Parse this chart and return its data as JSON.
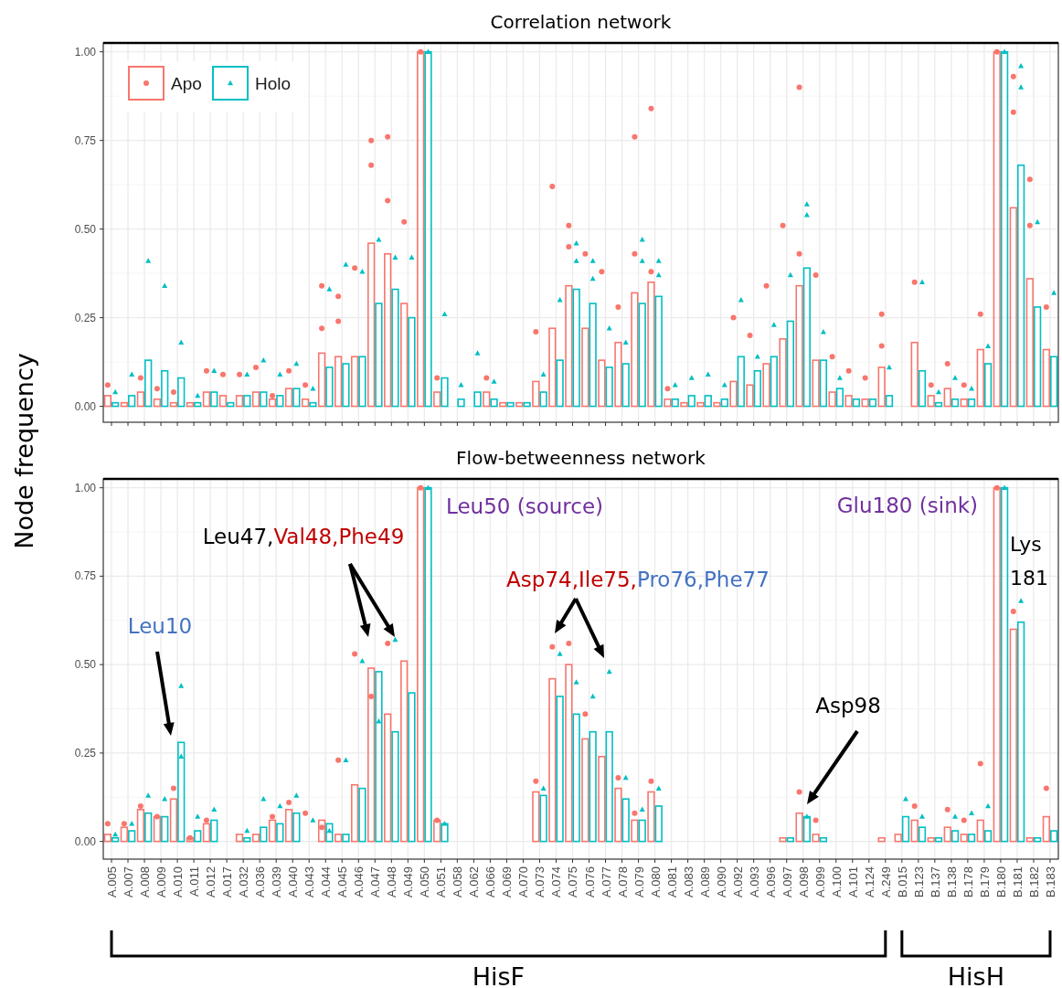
{
  "chart_data": [
    {
      "type": "bar",
      "title": "Correlation network",
      "ylabel": "Node frequency",
      "legend": "top left",
      "grid": true,
      "tick_labels": "y",
      "categories": [
        "A.005",
        "A.007",
        "A.008",
        "A.009",
        "A.010",
        "A.011",
        "A.012",
        "A.017",
        "A.032",
        "A.036",
        "A.039",
        "A.040",
        "A.043",
        "A.044",
        "A.045",
        "A.046",
        "A.047",
        "A.048",
        "A.049",
        "A.050",
        "A.051",
        "A.058",
        "A.062",
        "A.066",
        "A.069",
        "A.070",
        "A.073",
        "A.074",
        "A.075",
        "A.076",
        "A.077",
        "A.078",
        "A.079",
        "A.080",
        "A.081",
        "A.083",
        "A.089",
        "A.090",
        "A.092",
        "A.093",
        "A.096",
        "A.097",
        "A.098",
        "A.099",
        "A.100",
        "A.101",
        "A.124",
        "A.249",
        "B.015",
        "B.123",
        "B.137",
        "B.138",
        "B.178",
        "B.179",
        "B.180",
        "B.181",
        "B.182",
        "B.183"
      ],
      "ylim": [
        -0.045,
        1.025
      ],
      "yticks": [
        {
          "value": 0,
          "label": "0.00"
        },
        {
          "value": 0.25,
          "label": "0.25"
        },
        {
          "value": 0.5,
          "label": "0.50"
        },
        {
          "value": 0.75,
          "label": "0.75"
        },
        {
          "value": 1,
          "label": "1.00"
        }
      ],
      "series": [
        {
          "name": "Apo",
          "color": "#f8766d",
          "values": [
            0.03,
            0.01,
            0.04,
            0.02,
            0.01,
            0.01,
            0.04,
            0.03,
            0.03,
            0.04,
            0.02,
            0.05,
            0.02,
            0.15,
            0.14,
            0.14,
            0.46,
            0.43,
            0.29,
            1,
            0.04,
            0,
            0,
            0.04,
            0.01,
            0.01,
            0.07,
            0.22,
            0.34,
            0.22,
            0.13,
            0.18,
            0.32,
            0.35,
            0.02,
            0.01,
            0.01,
            0.01,
            0.07,
            0.06,
            0.12,
            0.19,
            0.34,
            0.13,
            0.04,
            0.03,
            0.02,
            0.11,
            0,
            0.18,
            0.03,
            0.05,
            0.02,
            0.16,
            1,
            0.56,
            0.36,
            0.16
          ]
        },
        {
          "name": "Holo",
          "color": "#00bfc4",
          "values": [
            0.01,
            0.03,
            0.13,
            0.1,
            0.08,
            0.01,
            0.04,
            0.01,
            0.03,
            0.04,
            0.03,
            0.05,
            0.01,
            0.11,
            0.12,
            0.14,
            0.29,
            0.33,
            0.25,
            1,
            0.08,
            0.02,
            0.04,
            0.02,
            0.01,
            0.01,
            0.04,
            0.13,
            0.33,
            0.29,
            0.11,
            0.12,
            0.29,
            0.31,
            0.02,
            0.03,
            0.03,
            0.02,
            0.14,
            0.1,
            0.14,
            0.24,
            0.39,
            0.13,
            0.05,
            0.02,
            0.02,
            0.03,
            0,
            0.1,
            0.01,
            0.02,
            0.02,
            0.12,
            1,
            0.68,
            0.28,
            0.14
          ]
        },
        {
          "type": "scatter",
          "color": "#f8766d",
          "marker": "circle",
          "x": [
            "A.005",
            "A.008",
            "A.009",
            "A.010",
            "A.012",
            "A.017",
            "A.032",
            "A.036",
            "A.039",
            "A.040",
            "A.043",
            "A.044",
            "A.044",
            "A.045",
            "A.045",
            "A.046",
            "A.047",
            "A.047",
            "A.048",
            "A.048",
            "A.049",
            "A.050",
            "A.051",
            "A.066",
            "A.073",
            "A.074",
            "A.075",
            "A.075",
            "A.076",
            "A.077",
            "A.078",
            "A.079",
            "A.079",
            "A.080",
            "A.080",
            "A.081",
            "A.092",
            "A.093",
            "A.096",
            "A.097",
            "A.098",
            "A.098",
            "A.099",
            "A.100",
            "A.101",
            "A.124",
            "A.249",
            "A.249",
            "B.123",
            "B.137",
            "B.138",
            "B.178",
            "B.179",
            "B.180",
            "B.181",
            "B.181",
            "B.182",
            "B.182",
            "B.183"
          ],
          "values": [
            0.06,
            0.08,
            0.05,
            0.04,
            0.1,
            0.09,
            0.09,
            0.11,
            0.03,
            0.1,
            0.06,
            0.34,
            0.22,
            0.31,
            0.24,
            0.39,
            0.75,
            0.68,
            0.76,
            0.58,
            0.52,
            1,
            0.08,
            0.08,
            0.21,
            0.62,
            0.51,
            0.45,
            0.43,
            0.38,
            0.28,
            0.76,
            0.43,
            0.84,
            0.38,
            0.05,
            0.25,
            0.2,
            0.34,
            0.51,
            0.9,
            0.43,
            0.37,
            0.14,
            0.1,
            0.08,
            0.26,
            0.17,
            0.35,
            0.06,
            0.12,
            0.06,
            0.26,
            1,
            0.93,
            0.83,
            0.64,
            0.51,
            0.28
          ]
        },
        {
          "type": "scatter",
          "color": "#00bfc4",
          "marker": "triangle",
          "x": [
            "A.005",
            "A.007",
            "A.008",
            "A.009",
            "A.010",
            "A.011",
            "A.012",
            "A.032",
            "A.036",
            "A.039",
            "A.040",
            "A.043",
            "A.044",
            "A.045",
            "A.046",
            "A.047",
            "A.048",
            "A.049",
            "A.050",
            "A.051",
            "A.058",
            "A.062",
            "A.066",
            "A.073",
            "A.074",
            "A.075",
            "A.075",
            "A.076",
            "A.076",
            "A.077",
            "A.078",
            "A.079",
            "A.079",
            "A.080",
            "A.080",
            "A.081",
            "A.083",
            "A.089",
            "A.090",
            "A.092",
            "A.093",
            "A.096",
            "A.097",
            "A.098",
            "A.098",
            "A.099",
            "A.100",
            "A.249",
            "B.123",
            "B.137",
            "B.138",
            "B.178",
            "B.179",
            "B.180",
            "B.181",
            "B.181",
            "B.182",
            "B.183"
          ],
          "values": [
            0.04,
            0.09,
            0.41,
            0.34,
            0.18,
            0.03,
            0.1,
            0.09,
            0.13,
            0.09,
            0.12,
            0.05,
            0.33,
            0.4,
            0.38,
            0.47,
            0.42,
            0.42,
            1,
            0.26,
            0.06,
            0.15,
            0.07,
            0.09,
            0.3,
            0.46,
            0.41,
            0.41,
            0.36,
            0.22,
            0.18,
            0.47,
            0.41,
            0.41,
            0.37,
            0.06,
            0.08,
            0.09,
            0.06,
            0.3,
            0.14,
            0.23,
            0.37,
            0.57,
            0.54,
            0.21,
            0.08,
            0.11,
            0.35,
            0.04,
            0.08,
            0.05,
            0.17,
            1,
            0.96,
            0.9,
            0.52,
            0.32
          ]
        }
      ]
    },
    {
      "type": "bar",
      "title": "Flow-betweenness network",
      "grid": true,
      "categories": [
        "A.005",
        "A.007",
        "A.008",
        "A.009",
        "A.010",
        "A.011",
        "A.012",
        "A.017",
        "A.032",
        "A.036",
        "A.039",
        "A.040",
        "A.043",
        "A.044",
        "A.045",
        "A.046",
        "A.047",
        "A.048",
        "A.049",
        "A.050",
        "A.051",
        "A.058",
        "A.062",
        "A.066",
        "A.069",
        "A.070",
        "A.073",
        "A.074",
        "A.075",
        "A.076",
        "A.077",
        "A.078",
        "A.079",
        "A.080",
        "A.081",
        "A.083",
        "A.089",
        "A.090",
        "A.092",
        "A.093",
        "A.096",
        "A.097",
        "A.098",
        "A.099",
        "A.100",
        "A.101",
        "A.124",
        "A.249",
        "B.015",
        "B.123",
        "B.137",
        "B.138",
        "B.178",
        "B.179",
        "B.180",
        "B.181",
        "B.182",
        "B.183"
      ],
      "ylim": [
        -0.05,
        1.025
      ],
      "yticks": [
        {
          "value": 0,
          "label": "0.00"
        },
        {
          "value": 0.25,
          "label": "0.25"
        },
        {
          "value": 0.5,
          "label": "0.50"
        },
        {
          "value": 0.75,
          "label": "0.75"
        },
        {
          "value": 1,
          "label": "1.00"
        }
      ],
      "series": [
        {
          "color": "#f8766d",
          "values": [
            0.02,
            0.04,
            0.09,
            0.07,
            0.12,
            0.01,
            0.05,
            0,
            0.02,
            0.02,
            0.06,
            0.09,
            0,
            0.06,
            0.02,
            0.16,
            0.49,
            0.36,
            0.51,
            1,
            0.06,
            0,
            0,
            0,
            0,
            0,
            0.14,
            0.46,
            0.5,
            0.29,
            0.24,
            0.15,
            0.06,
            0.14,
            0,
            0,
            0,
            0,
            0,
            0,
            0,
            0.01,
            0.08,
            0.02,
            0,
            0,
            0,
            0.01,
            0.02,
            0.06,
            0.01,
            0.04,
            0.02,
            0.06,
            1,
            0.6,
            0.01,
            0.07
          ]
        },
        {
          "color": "#00bfc4",
          "values": [
            0.01,
            0.03,
            0.08,
            0.07,
            0.28,
            0.03,
            0.06,
            0,
            0.01,
            0.04,
            0.05,
            0.08,
            0,
            0.05,
            0.02,
            0.15,
            0.48,
            0.31,
            0.42,
            1,
            0.05,
            0,
            0,
            0,
            0,
            0,
            0.13,
            0.41,
            0.36,
            0.31,
            0.31,
            0.12,
            0.06,
            0.1,
            0,
            0,
            0,
            0,
            0,
            0,
            0,
            0.01,
            0.07,
            0.01,
            0,
            0,
            0,
            0,
            0.07,
            0.04,
            0.01,
            0.03,
            0.02,
            0.03,
            1,
            0.62,
            0.01,
            0.03
          ]
        },
        {
          "type": "scatter",
          "color": "#f8766d",
          "marker": "circle",
          "x": [
            "A.005",
            "A.007",
            "A.008",
            "A.009",
            "A.010",
            "A.011",
            "A.012",
            "A.039",
            "A.040",
            "A.043",
            "A.044",
            "A.045",
            "A.046",
            "A.047",
            "A.048",
            "A.050",
            "A.051",
            "A.073",
            "A.074",
            "A.075",
            "A.076",
            "A.078",
            "A.079",
            "A.080",
            "A.098",
            "A.099",
            "B.123",
            "B.138",
            "B.178",
            "B.179",
            "B.180",
            "B.181",
            "B.183"
          ],
          "values": [
            0.05,
            0.05,
            0.1,
            0.07,
            0.15,
            0.01,
            0.06,
            0.07,
            0.11,
            0.08,
            0.04,
            0.23,
            0.53,
            0.41,
            0.56,
            1,
            0.06,
            0.17,
            0.55,
            0.56,
            0.36,
            0.18,
            0.08,
            0.17,
            0.14,
            0.06,
            0.1,
            0.09,
            0.06,
            0.22,
            1,
            0.65,
            0.15
          ]
        },
        {
          "type": "scatter",
          "color": "#00bfc4",
          "marker": "triangle",
          "x": [
            "A.005",
            "A.007",
            "A.008",
            "A.009",
            "A.010",
            "A.010",
            "A.011",
            "A.012",
            "A.032",
            "A.036",
            "A.039",
            "A.040",
            "A.043",
            "A.044",
            "A.045",
            "A.046",
            "A.047",
            "A.048",
            "A.050",
            "A.051",
            "A.073",
            "A.074",
            "A.075",
            "A.076",
            "A.077",
            "A.078",
            "A.079",
            "A.080",
            "A.098",
            "B.015",
            "B.123",
            "B.138",
            "B.178",
            "B.179",
            "B.180",
            "B.181"
          ],
          "values": [
            0.02,
            0.05,
            0.13,
            0.12,
            0.44,
            0.24,
            0.07,
            0.09,
            0.03,
            0.12,
            0.1,
            0.13,
            0.06,
            0.03,
            0.23,
            0.51,
            0.34,
            0.57,
            1,
            0.05,
            0.15,
            0.53,
            0.45,
            0.41,
            0.48,
            0.18,
            0.09,
            0.15,
            0.07,
            0.12,
            0.07,
            0.07,
            0.08,
            0.1,
            1,
            0.68
          ]
        }
      ],
      "annotations": [
        "Leu10",
        "Leu47,Val48,Phe49",
        "Asp74,Ile75,Pro76,Phe77",
        "Leu50 (source)",
        "Glu180 (sink)",
        "Lys 181",
        "Asp98",
        "HisF",
        "HisH"
      ]
    }
  ]
}
